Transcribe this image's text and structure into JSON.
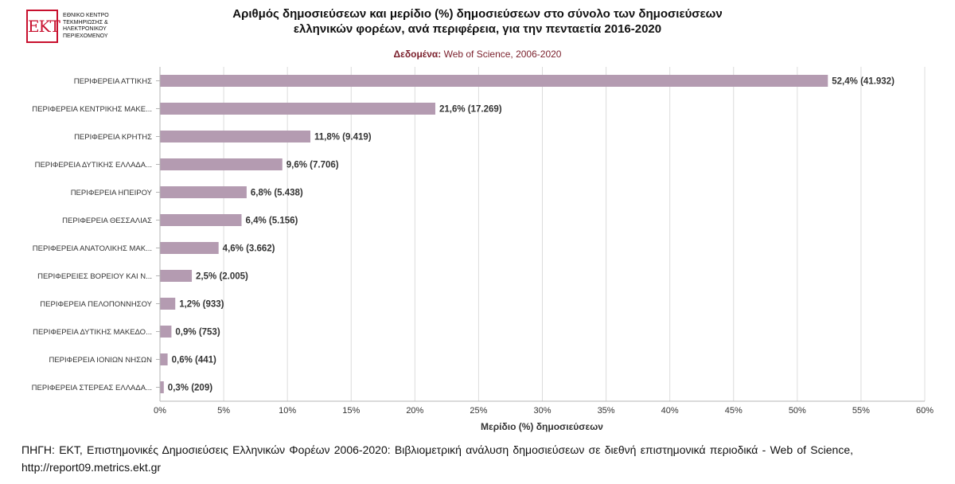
{
  "logo": {
    "mark": "ΕΚΤ",
    "lines": [
      "ΕΘΝΙΚΟ ΚΕΝΤΡΟ",
      "ΤΕΚΜΗΡΙΩΣΗΣ &",
      "ΗΛΕΚΤΡΟΝΙΚΟΥ",
      "ΠΕΡΙΕΧΟΜΕΝΟΥ"
    ]
  },
  "header": {
    "title_line1": "Αριθμός δημοσιεύσεων και μερίδιο (%) δημοσιεύσεων στο σύνολο των δημοσιεύσεων",
    "title_line2": "ελληνικών φορέων, ανά περιφέρεια, για την πενταετία 2016-2020",
    "subtitle_label": "Δεδομένα:",
    "subtitle_value": "Web of Science, 2006-2020"
  },
  "source_note": "ΠΗΓΗ: ΕΚΤ, Επιστημονικές Δημοσιεύσεις Ελληνικών Φορέων 2006-2020: Βιβλιομετρική ανάλυση δημοσιεύσεων σε διεθνή επιστημονικά περιοδικά - Web of Science, http://report09.metrics.ekt.gr",
  "chart_data": {
    "type": "bar",
    "orientation": "horizontal",
    "categories": [
      "ΠΕΡΙΦΕΡΕΙΑ ΑΤΤΙΚΗΣ",
      "ΠΕΡΙΦΕΡΕΙΑ ΚΕΝΤΡΙΚΗΣ ΜΑΚΕ...",
      "ΠΕΡΙΦΕΡΕΙΑ ΚΡΗΤΗΣ",
      "ΠΕΡΙΦΕΡΕΙΑ ΔΥΤΙΚΗΣ ΕΛΛΑΔΑ...",
      "ΠΕΡΙΦΕΡΕΙΑ ΗΠΕΙΡΟΥ",
      "ΠΕΡΙΦΕΡΕΙΑ ΘΕΣΣΑΛΙΑΣ",
      "ΠΕΡΙΦΕΡΕΙΑ ΑΝΑΤΟΛΙΚΗΣ ΜΑΚ...",
      "ΠΕΡΙΦΕΡΕΙΕΣ ΒΟΡΕΙΟΥ ΚΑΙ Ν...",
      "ΠΕΡΙΦΕΡΕΙΑ ΠΕΛΟΠΟΝΝΗΣΟΥ",
      "ΠΕΡΙΦΕΡΕΙΑ ΔΥΤΙΚΗΣ ΜΑΚΕΔΟ...",
      "ΠΕΡΙΦΕΡΕΙΑ ΙΟΝΙΩΝ ΝΗΣΩΝ",
      "ΠΕΡΙΦΕΡΕΙΑ ΣΤΕΡΕΑΣ ΕΛΛΑΔΑ..."
    ],
    "values": [
      52.4,
      21.6,
      11.8,
      9.6,
      6.8,
      6.4,
      4.6,
      2.5,
      1.2,
      0.9,
      0.6,
      0.3
    ],
    "counts": [
      41932,
      17269,
      9419,
      7706,
      5438,
      5156,
      3662,
      2005,
      933,
      753,
      441,
      209
    ],
    "data_labels": [
      "52,4% (41.932)",
      "21,6% (17.269)",
      "11,8% (9.419)",
      "9,6% (7.706)",
      "6,8% (5.438)",
      "6,4% (5.156)",
      "4,6% (3.662)",
      "2,5% (2.005)",
      "1,2% (933)",
      "0,9% (753)",
      "0,6% (441)",
      "0,3% (209)"
    ],
    "xlabel": "Μερίδιο (%) δημοσιεύσεων",
    "ylabel": "",
    "xlim": [
      0,
      60
    ],
    "xticks": [
      0,
      5,
      10,
      15,
      20,
      25,
      30,
      35,
      40,
      45,
      50,
      55,
      60
    ],
    "xtick_labels": [
      "0%",
      "5%",
      "10%",
      "15%",
      "20%",
      "25%",
      "30%",
      "35%",
      "40%",
      "45%",
      "50%",
      "55%",
      "60%"
    ],
    "grid": true,
    "bar_color": "#b49bb1",
    "grid_color": "#dcdcdc",
    "axis_color": "#b5b5b5",
    "label_color": "#333333"
  }
}
